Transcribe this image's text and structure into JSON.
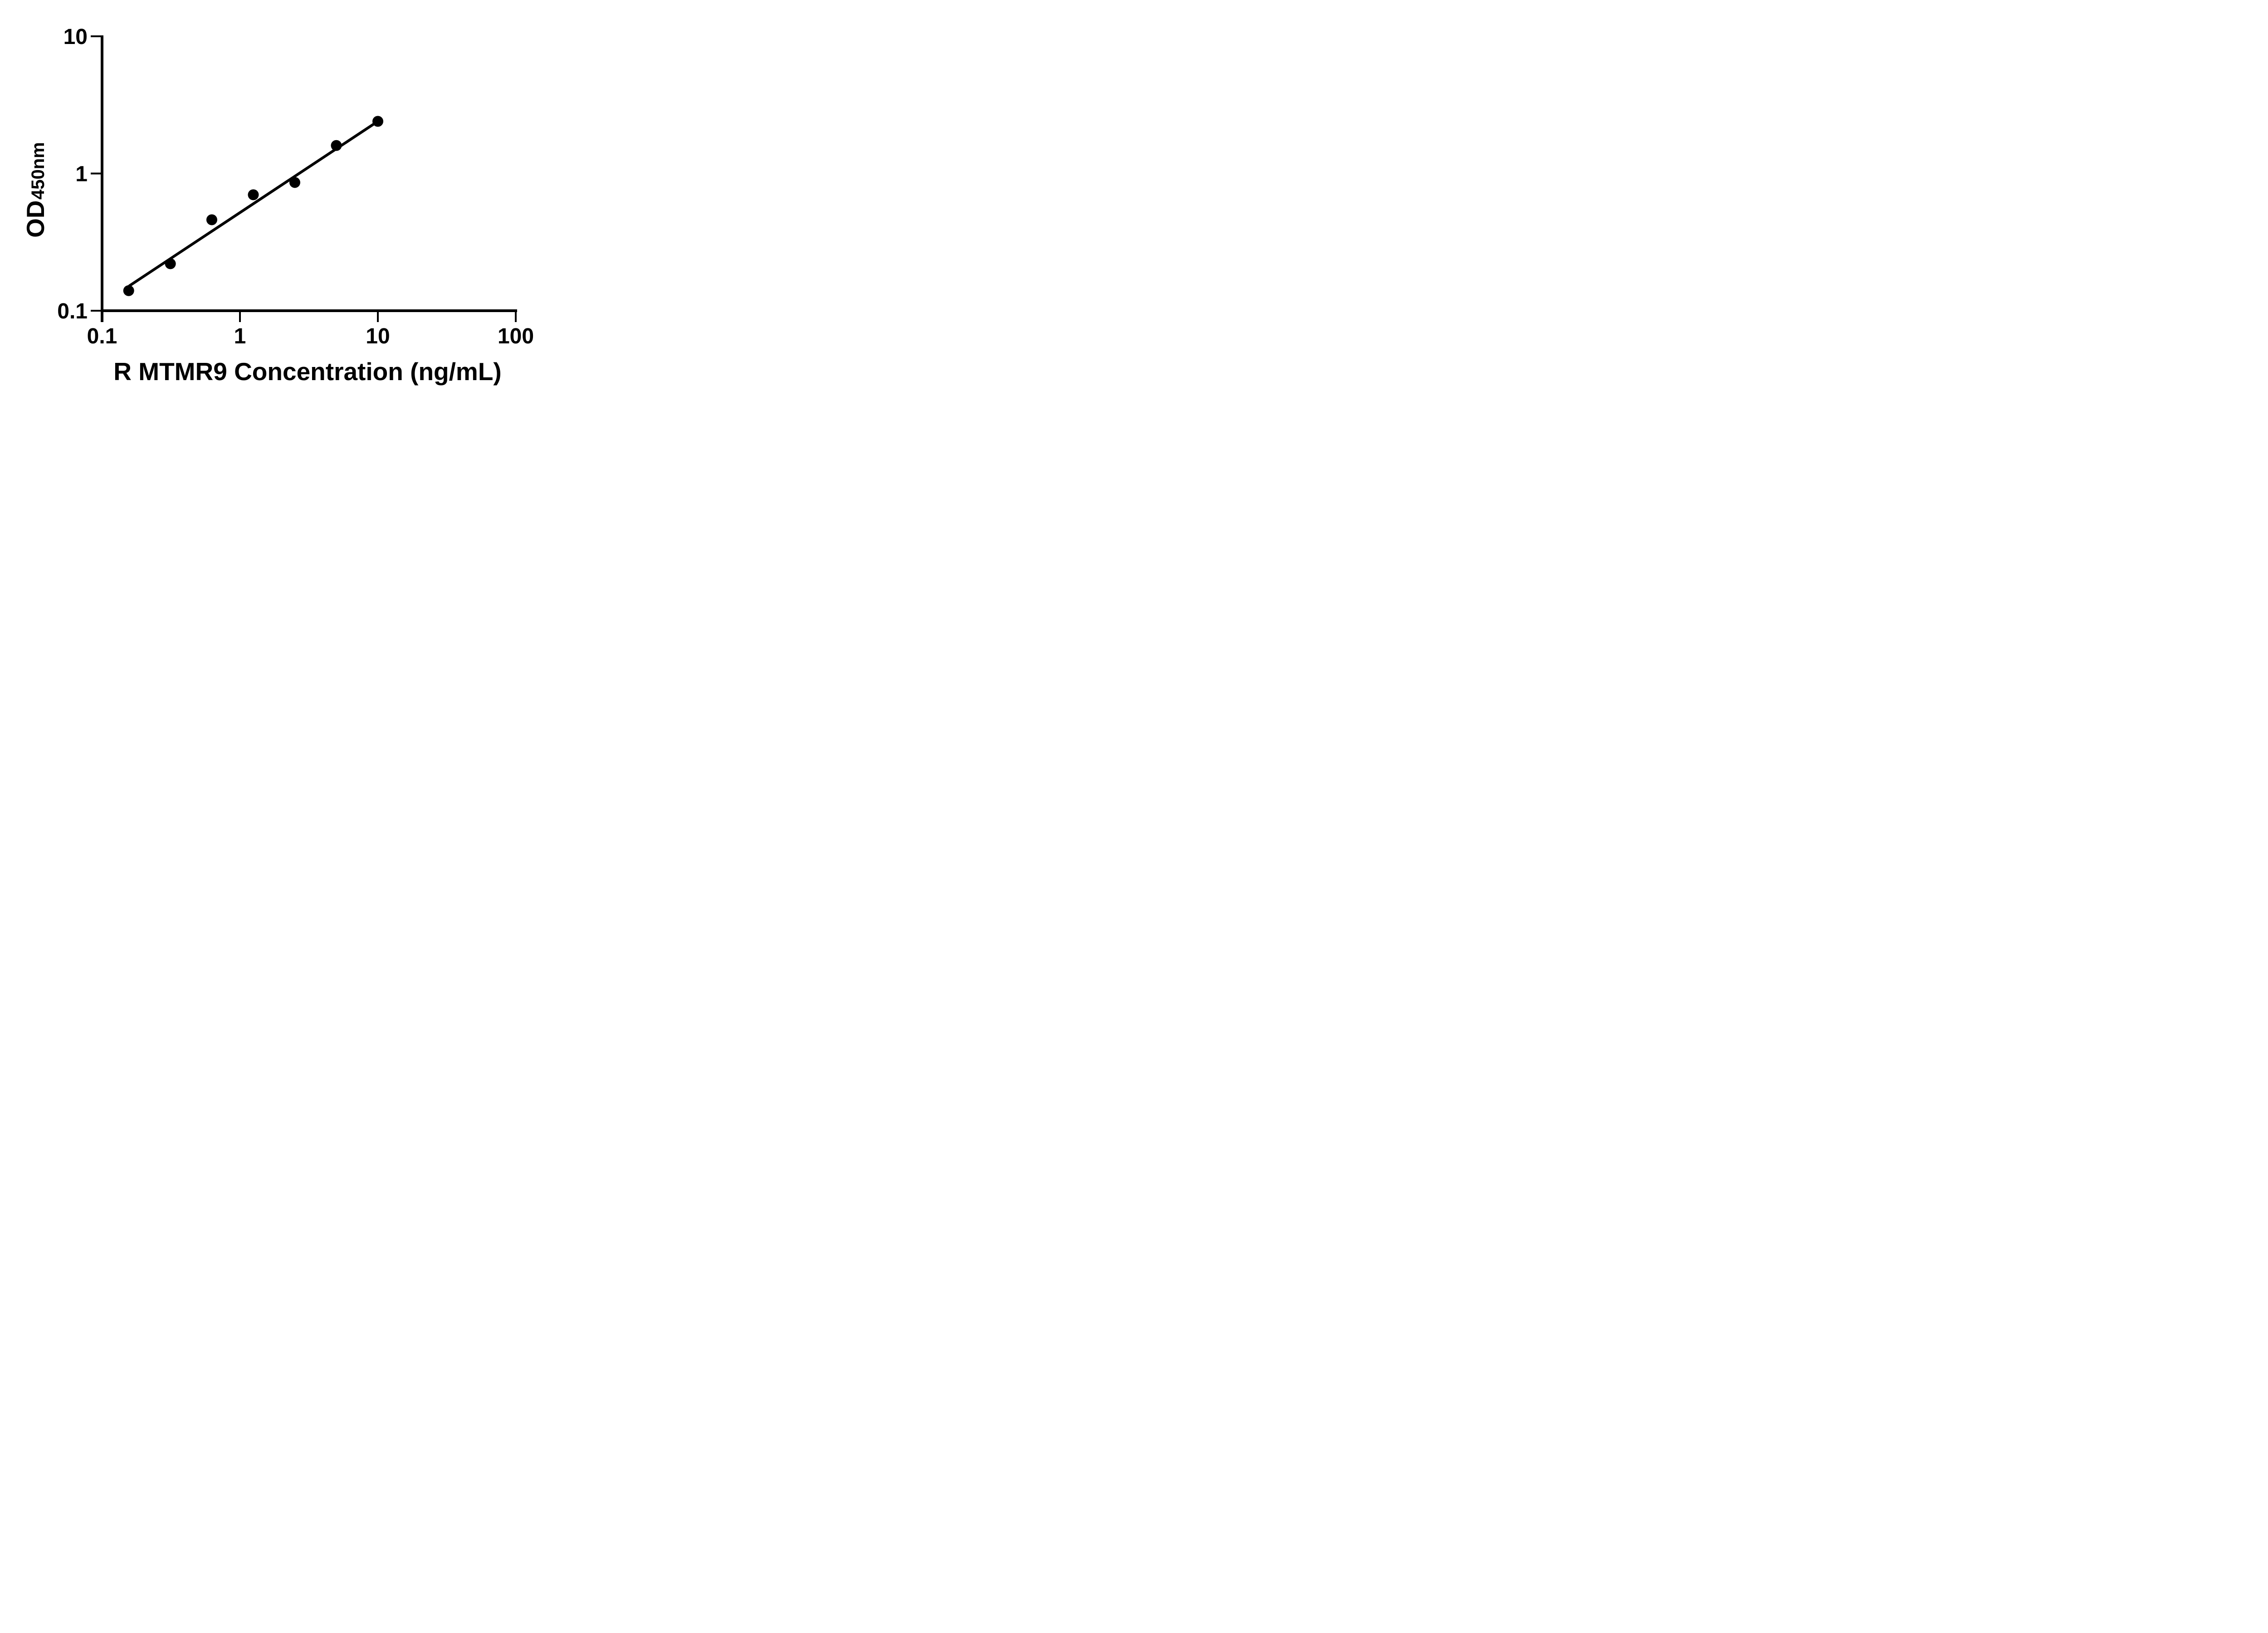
{
  "figure": {
    "background_color": "#ffffff",
    "ink_color": "#000000"
  },
  "chart_data": {
    "type": "scatter",
    "title": "",
    "xlabel": "R MTMR9 Concentration (ng/mL)",
    "ylabel_main": "OD",
    "ylabel_sub": "450nm",
    "x_scale": "log",
    "y_scale": "log",
    "xlim": [
      0.1,
      100
    ],
    "ylim": [
      0.1,
      10
    ],
    "x_tick_values": [
      0.1,
      1,
      10,
      100
    ],
    "x_tick_labels": [
      "0.1",
      "1",
      "10",
      "100"
    ],
    "y_tick_values": [
      10,
      1,
      0.1
    ],
    "y_tick_labels": [
      "10",
      "1",
      "0.1"
    ],
    "grid": false,
    "legend": "none",
    "series": [
      {
        "name": "standard-curve-points",
        "marker": "filled-circle",
        "color": "#000000",
        "x": [
          0.156,
          0.313,
          0.625,
          1.25,
          2.5,
          5,
          10
        ],
        "y": [
          0.14,
          0.22,
          0.46,
          0.7,
          0.86,
          1.6,
          2.4
        ]
      }
    ],
    "trendline": {
      "x1": 0.158,
      "y1": 0.152,
      "x2": 10,
      "y2": 2.4
    }
  }
}
